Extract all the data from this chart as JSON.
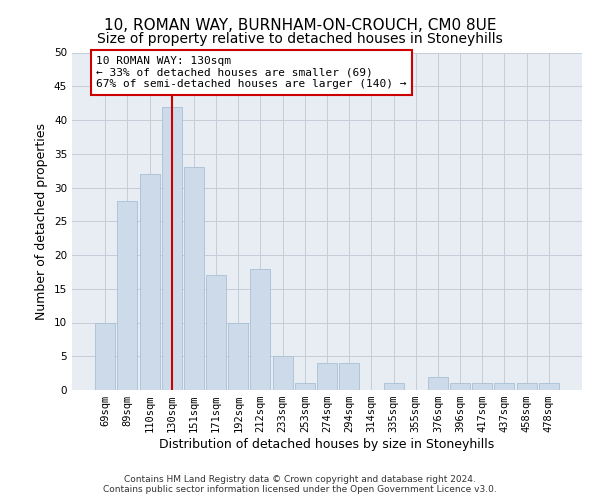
{
  "title": "10, ROMAN WAY, BURNHAM-ON-CROUCH, CM0 8UE",
  "subtitle": "Size of property relative to detached houses in Stoneyhills",
  "xlabel": "Distribution of detached houses by size in Stoneyhills",
  "ylabel": "Number of detached properties",
  "categories": [
    "69sqm",
    "89sqm",
    "110sqm",
    "130sqm",
    "151sqm",
    "171sqm",
    "192sqm",
    "212sqm",
    "233sqm",
    "253sqm",
    "274sqm",
    "294sqm",
    "314sqm",
    "335sqm",
    "355sqm",
    "376sqm",
    "396sqm",
    "417sqm",
    "437sqm",
    "458sqm",
    "478sqm"
  ],
  "values": [
    10,
    28,
    32,
    42,
    33,
    17,
    10,
    18,
    5,
    1,
    4,
    4,
    0,
    1,
    0,
    2,
    1,
    1,
    1,
    1,
    1
  ],
  "bar_color": "#ccdaea",
  "bar_edgecolor": "#a8c0d4",
  "red_line_x": 3.0,
  "annotation_line1": "10 ROMAN WAY: 130sqm",
  "annotation_line2": "← 33% of detached houses are smaller (69)",
  "annotation_line3": "67% of semi-detached houses are larger (140) →",
  "annotation_box_color": "#ffffff",
  "annotation_box_edgecolor": "#cc0000",
  "ylim": [
    0,
    50
  ],
  "yticks": [
    0,
    5,
    10,
    15,
    20,
    25,
    30,
    35,
    40,
    45,
    50
  ],
  "background_color": "#ffffff",
  "axes_bg_color": "#e8edf4",
  "grid_color": "#c5cdd8",
  "footer_line1": "Contains HM Land Registry data © Crown copyright and database right 2024.",
  "footer_line2": "Contains public sector information licensed under the Open Government Licence v3.0.",
  "title_fontsize": 11,
  "subtitle_fontsize": 10,
  "axis_label_fontsize": 9,
  "tick_fontsize": 7.5,
  "footer_fontsize": 6.5
}
